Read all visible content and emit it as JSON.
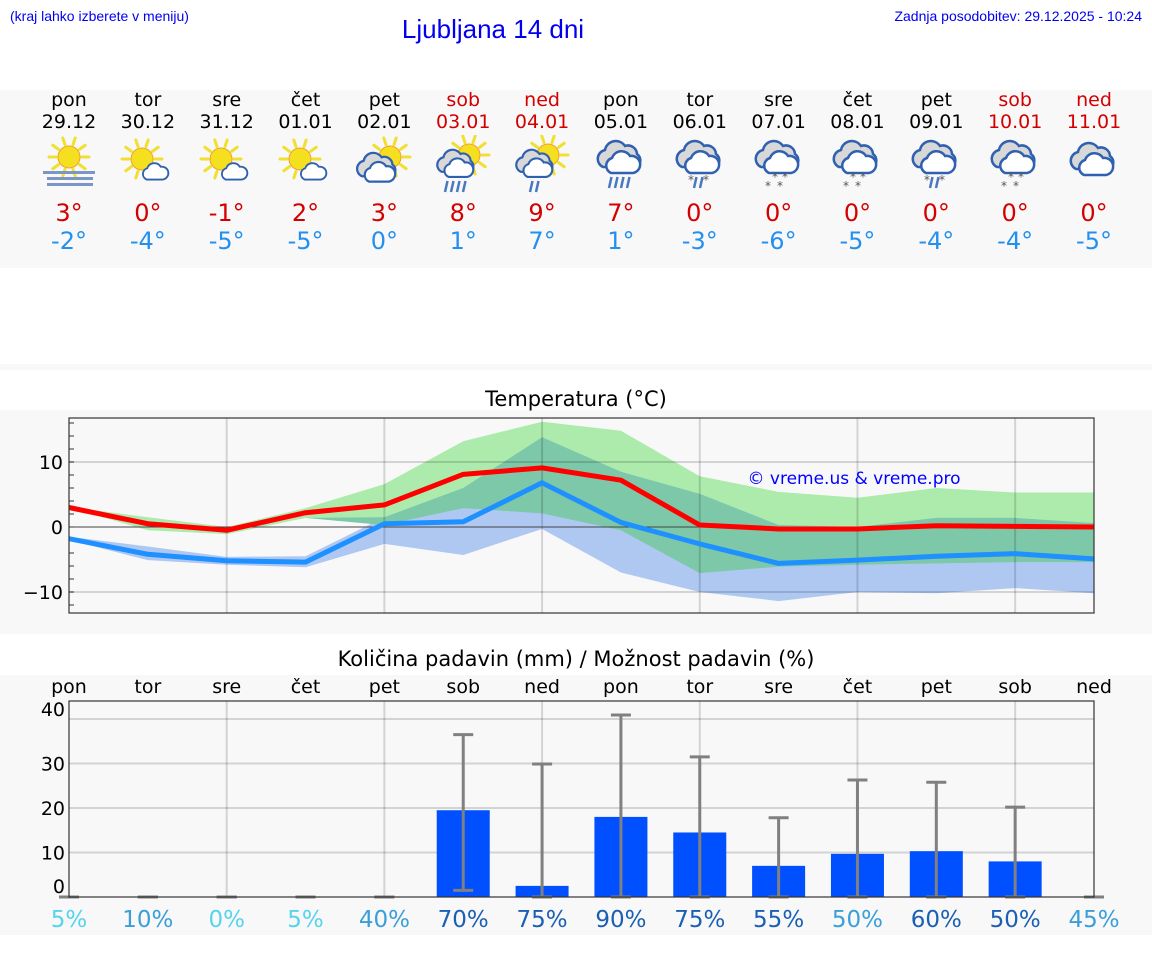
{
  "header": {
    "hint": "(kraj lahko izberete v meniju)",
    "title": "Ljubljana 14 dni",
    "updated": "Zadnja posodobitev: 29.12.2025 - 10:24"
  },
  "days": [
    {
      "name": "pon",
      "date": "29.12",
      "weekend": false,
      "icon": "sun-fog",
      "max": "3°",
      "min": "-2°"
    },
    {
      "name": "tor",
      "date": "30.12",
      "weekend": false,
      "icon": "sun-small-cloud",
      "max": "0°",
      "min": "-4°"
    },
    {
      "name": "sre",
      "date": "31.12",
      "weekend": false,
      "icon": "sun-small-cloud",
      "max": "-1°",
      "min": "-5°"
    },
    {
      "name": "čet",
      "date": "01.01",
      "weekend": false,
      "icon": "sun-small-cloud",
      "max": "2°",
      "min": "-5°"
    },
    {
      "name": "pet",
      "date": "02.01",
      "weekend": false,
      "icon": "partly-cloudy",
      "max": "3°",
      "min": "0°"
    },
    {
      "name": "sob",
      "date": "03.01",
      "weekend": true,
      "icon": "sun-cloud-heavy-rain",
      "max": "8°",
      "min": "1°"
    },
    {
      "name": "ned",
      "date": "04.01",
      "weekend": true,
      "icon": "sun-cloud-rain",
      "max": "9°",
      "min": "7°"
    },
    {
      "name": "pon",
      "date": "05.01",
      "weekend": false,
      "icon": "cloud-heavy-rain",
      "max": "7°",
      "min": "1°"
    },
    {
      "name": "tor",
      "date": "06.01",
      "weekend": false,
      "icon": "cloud-sleet",
      "max": "0°",
      "min": "-3°"
    },
    {
      "name": "sre",
      "date": "07.01",
      "weekend": false,
      "icon": "cloud-snow",
      "max": "0°",
      "min": "-6°"
    },
    {
      "name": "čet",
      "date": "08.01",
      "weekend": false,
      "icon": "cloud-snow",
      "max": "0°",
      "min": "-5°"
    },
    {
      "name": "pet",
      "date": "09.01",
      "weekend": false,
      "icon": "cloud-sleet",
      "max": "0°",
      "min": "-4°"
    },
    {
      "name": "sob",
      "date": "10.01",
      "weekend": true,
      "icon": "cloud-snow",
      "max": "0°",
      "min": "-4°"
    },
    {
      "name": "ned",
      "date": "11.01",
      "weekend": true,
      "icon": "overcast",
      "max": "0°",
      "min": "-5°"
    }
  ],
  "colors": {
    "max": "#ff0000",
    "min": "#1e90ff",
    "max_band": "#acebac",
    "min_band": "#aec8f2",
    "overlap": "#7cc8a8",
    "bar": "#0050ff",
    "errorbar": "#808080",
    "watermark": "#0000ff"
  },
  "chart_data": [
    {
      "type": "line",
      "title": "Temperatura (°C)",
      "watermark": "© vreme.us & vreme.pro",
      "ylim": [
        -13.2,
        16.8
      ],
      "yticks": [
        10,
        0,
        -10
      ],
      "ytick_labels": [
        "10",
        "0",
        "−10"
      ],
      "grid": true,
      "series": [
        {
          "key": "max",
          "values": [
            3,
            0.5,
            -0.5,
            2.2,
            3.4,
            8.1,
            9.1,
            7.2,
            0.3,
            -0.3,
            -0.3,
            0.2,
            0.1,
            0
          ]
        },
        {
          "key": "min",
          "values": [
            -1.8,
            -4.2,
            -5.2,
            -5.4,
            0.5,
            0.8,
            6.8,
            0.7,
            -2.6,
            -5.6,
            -5.1,
            -4.5,
            -4.1,
            -4.9
          ]
        }
      ],
      "bands": [
        {
          "key": "max_range",
          "low": [
            3,
            -0.5,
            -1.1,
            1.4,
            0.3,
            2.9,
            2.1,
            -0.5,
            -7.1,
            -6.1,
            -5.8,
            -5.6,
            -5.4,
            -5.4
          ],
          "high": [
            3.1,
            1.5,
            0,
            2.9,
            6.6,
            13.2,
            16.2,
            14.8,
            7.8,
            5.4,
            4.5,
            6,
            5.3,
            5.3
          ]
        },
        {
          "key": "min_range",
          "low": [
            -2,
            -5.1,
            -5.8,
            -6.2,
            -2.6,
            -4.3,
            -0.3,
            -7,
            -10,
            -11.4,
            -10,
            -10.2,
            -9.4,
            -10.2
          ],
          "high": [
            -1.5,
            -3,
            -4.6,
            -4.5,
            1.5,
            6,
            13.8,
            8.5,
            5.1,
            0.3,
            0,
            1.4,
            1.4,
            0.6
          ]
        }
      ]
    },
    {
      "type": "bar",
      "title": "Količina padavin (mm) / Možnost padavin (%)",
      "categories": [
        "pon",
        "tor",
        "sre",
        "čet",
        "pet",
        "sob",
        "ned",
        "pon",
        "tor",
        "sre",
        "čet",
        "pet",
        "sob",
        "ned"
      ],
      "values": [
        0,
        0,
        0,
        0,
        0,
        19.5,
        2.5,
        18,
        14.5,
        7,
        9.7,
        10.3,
        8,
        0
      ],
      "error_low": [
        0,
        0,
        0,
        0,
        0,
        1.5,
        0,
        0,
        0,
        0,
        0,
        0,
        0,
        0
      ],
      "error_high": [
        0,
        0,
        0,
        0,
        0,
        36.5,
        29.9,
        40.9,
        31.5,
        17.8,
        26.3,
        25.8,
        20.2,
        0
      ],
      "ylim": [
        0,
        44
      ],
      "yticks": [
        0,
        10,
        20,
        30,
        40
      ],
      "grid": true,
      "probability": [
        "5%",
        "10%",
        "0%",
        "5%",
        "40%",
        "70%",
        "75%",
        "90%",
        "75%",
        "55%",
        "50%",
        "60%",
        "50%",
        "45%"
      ],
      "probability_colors": [
        "#55d4ec",
        "#3a9fd8",
        "#55d4ec",
        "#55d4ec",
        "#3a9fd8",
        "#1a5fb4",
        "#1a5fb4",
        "#1a5fb4",
        "#1a5fb4",
        "#1a5fb4",
        "#3a9fd8",
        "#1a5fb4",
        "#1a5fb4",
        "#3a9fd8"
      ]
    }
  ]
}
